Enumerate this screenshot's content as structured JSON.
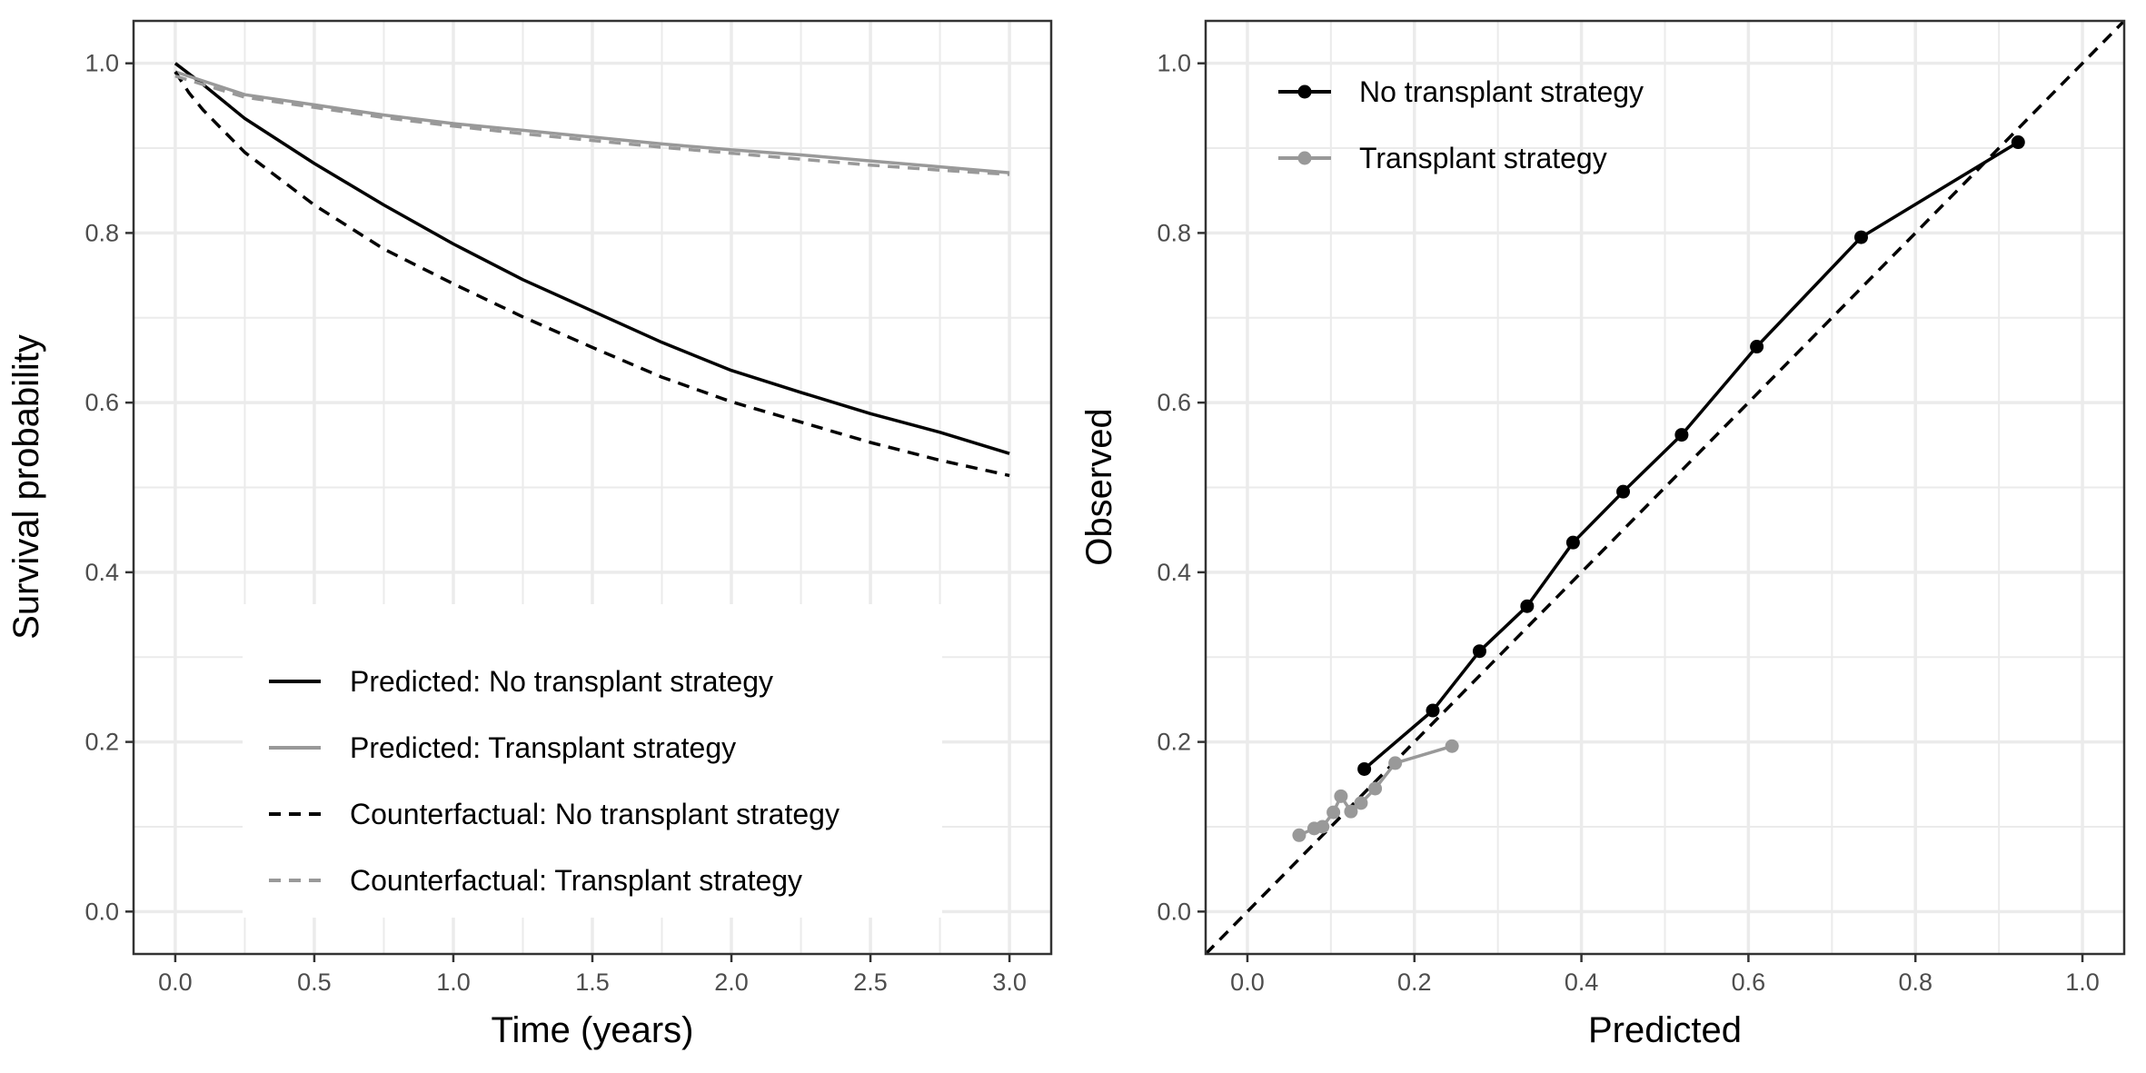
{
  "colors": {
    "dark": "#000000",
    "gray": "#999999",
    "grid": "#ebebeb",
    "panel_border": "#333333"
  },
  "chart_data": [
    {
      "type": "line",
      "xlabel": "Time (years)",
      "ylabel": "Survival probability",
      "xlim": [
        -0.15,
        3.15
      ],
      "ylim": [
        -0.05,
        1.05
      ],
      "xticks": [
        "0.0",
        "0.5",
        "1.0",
        "1.5",
        "2.0",
        "2.5",
        "3.0"
      ],
      "yticks": [
        "0.0",
        "0.2",
        "0.4",
        "0.6",
        "0.8",
        "1.0"
      ],
      "grid": true,
      "legend_position": "bottom-center",
      "series": [
        {
          "name": "Predicted: No transplant strategy",
          "color": "#000000",
          "dash": "solid",
          "x": [
            0,
            0.1,
            0.25,
            0.5,
            0.75,
            1.0,
            1.25,
            1.5,
            1.75,
            2.0,
            2.25,
            2.5,
            2.75,
            3.0
          ],
          "y": [
            1.0,
            0.975,
            0.935,
            0.882,
            0.833,
            0.787,
            0.745,
            0.708,
            0.671,
            0.638,
            0.612,
            0.587,
            0.565,
            0.54
          ]
        },
        {
          "name": "Predicted: Transplant strategy",
          "color": "#999999",
          "dash": "solid",
          "x": [
            0,
            0.25,
            0.5,
            0.75,
            1.0,
            1.25,
            1.5,
            1.75,
            2.0,
            2.25,
            2.5,
            2.75,
            3.0
          ],
          "y": [
            0.99,
            0.963,
            0.951,
            0.939,
            0.929,
            0.921,
            0.913,
            0.905,
            0.898,
            0.892,
            0.885,
            0.878,
            0.871
          ]
        },
        {
          "name": "Counterfactual: No transplant strategy",
          "color": "#000000",
          "dash": "dashed",
          "x": [
            0,
            0.05,
            0.1,
            0.25,
            0.5,
            0.75,
            1.0,
            1.25,
            1.5,
            1.75,
            2.0,
            2.25,
            2.5,
            2.75,
            3.0
          ],
          "y": [
            0.99,
            0.965,
            0.945,
            0.895,
            0.833,
            0.781,
            0.74,
            0.701,
            0.665,
            0.63,
            0.601,
            0.577,
            0.553,
            0.532,
            0.514
          ]
        },
        {
          "name": "Counterfactual: Transplant strategy",
          "color": "#999999",
          "dash": "dashed",
          "x": [
            0,
            0.25,
            0.5,
            0.75,
            1.0,
            1.25,
            1.5,
            1.75,
            2.0,
            2.25,
            2.5,
            2.75,
            3.0
          ],
          "y": [
            0.985,
            0.96,
            0.948,
            0.936,
            0.926,
            0.917,
            0.909,
            0.901,
            0.894,
            0.887,
            0.88,
            0.874,
            0.869
          ]
        }
      ]
    },
    {
      "type": "line",
      "xlabel": "Predicted",
      "ylabel": "Observed",
      "xlim": [
        -0.05,
        1.05
      ],
      "ylim": [
        -0.05,
        1.05
      ],
      "xticks": [
        "0.0",
        "0.2",
        "0.4",
        "0.6",
        "0.8",
        "1.0"
      ],
      "yticks": [
        "0.0",
        "0.2",
        "0.4",
        "0.6",
        "0.8",
        "1.0"
      ],
      "grid": true,
      "legend_position": "top-left",
      "reference_line": {
        "type": "identity",
        "color": "#000000",
        "dash": "dashed"
      },
      "series": [
        {
          "name": "No transplant strategy",
          "color": "#000000",
          "markers": true,
          "x": [
            0.14,
            0.222,
            0.278,
            0.335,
            0.39,
            0.45,
            0.52,
            0.61,
            0.735,
            0.923
          ],
          "y": [
            0.168,
            0.237,
            0.307,
            0.36,
            0.435,
            0.495,
            0.562,
            0.666,
            0.795,
            0.907
          ]
        },
        {
          "name": "Transplant strategy",
          "color": "#999999",
          "markers": true,
          "x": [
            0.062,
            0.08,
            0.09,
            0.103,
            0.112,
            0.124,
            0.136,
            0.153,
            0.177,
            0.245
          ],
          "y": [
            0.09,
            0.098,
            0.1,
            0.117,
            0.136,
            0.118,
            0.128,
            0.145,
            0.175,
            0.195
          ]
        }
      ]
    }
  ]
}
